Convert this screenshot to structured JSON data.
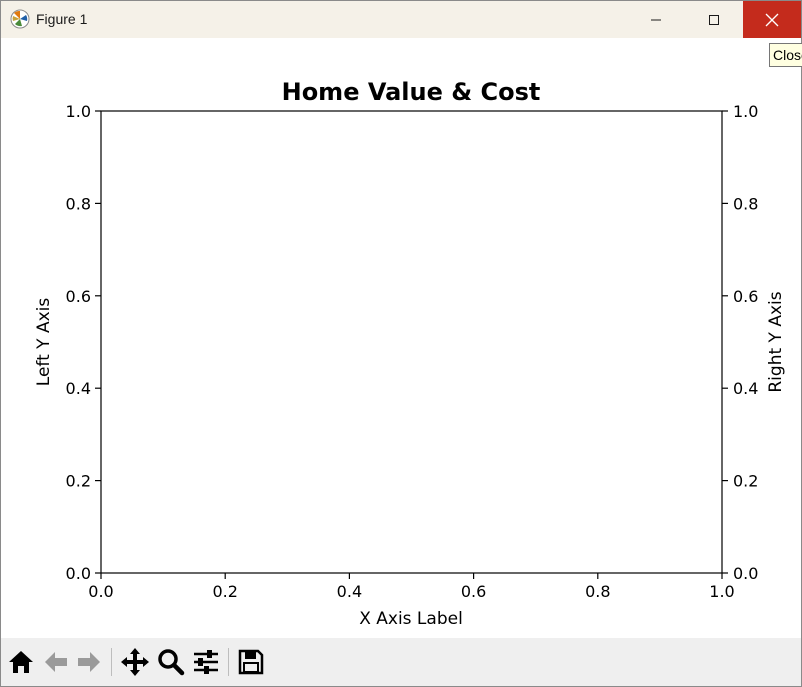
{
  "window": {
    "title": "Figure 1",
    "tooltip": "Close"
  },
  "chart_data": {
    "type": "line",
    "title": "Home Value & Cost",
    "xlabel": "X Axis Label",
    "ylabel": "Left Y Axis",
    "ylabel_right": "Right Y Axis",
    "xlim": [
      0.0,
      1.0
    ],
    "ylim": [
      0.0,
      1.0
    ],
    "ylim_right": [
      0.0,
      1.0
    ],
    "x_ticks": [
      "0.0",
      "0.2",
      "0.4",
      "0.6",
      "0.8",
      "1.0"
    ],
    "y_ticks": [
      "0.0",
      "0.2",
      "0.4",
      "0.6",
      "0.8",
      "1.0"
    ],
    "y_ticks_right": [
      "0.0",
      "0.2",
      "0.4",
      "0.6",
      "0.8",
      "1.0"
    ],
    "series": [],
    "grid": false,
    "legend": "none"
  },
  "toolbar": {
    "items": [
      "home-icon",
      "back-icon",
      "forward-icon",
      "pan-icon",
      "zoom-icon",
      "configure-subplots-icon",
      "save-icon"
    ]
  }
}
